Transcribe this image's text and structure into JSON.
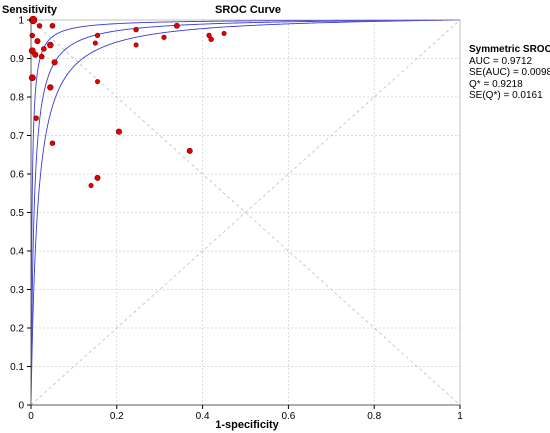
{
  "chart_data": {
    "type": "scatter",
    "title": "SROC Curve",
    "xlabel": "1-specificity",
    "ylabel": "Sensitivity",
    "xlim": [
      0,
      1
    ],
    "ylim": [
      0,
      1
    ],
    "xticks": [
      "0",
      "0.2",
      "0.4",
      "0.6",
      "0.8",
      "1"
    ],
    "yticks": [
      "0",
      "0.1",
      "0.2",
      "0.3",
      "0.4",
      "0.5",
      "0.6",
      "0.7",
      "0.8",
      "0.9",
      "1"
    ],
    "grid": true,
    "reference_lines": [
      "diagonal",
      "anti-diagonal"
    ],
    "colors": {
      "points": "#e00000",
      "points_outline": "#7a0000",
      "curves": "#3a3ad8",
      "grid": "#cfcfcf",
      "diagonal": "#bdbdbd"
    },
    "legend": {
      "placement": "right",
      "title": "Symmetric SROC",
      "lines": [
        "AUC = 0.9712",
        "SE(AUC) = 0.0098",
        "Q* = 0.9218",
        "SE(Q*) = 0.0161"
      ]
    },
    "sroc_curves": [
      {
        "label": "central",
        "q_star": 0.9218
      },
      {
        "label": "lower",
        "q_star": 0.8902
      },
      {
        "label": "upper",
        "q_star": 0.9534
      }
    ],
    "points": [
      {
        "x": 0.005,
        "y": 1.0,
        "weight": 3.0
      },
      {
        "x": 0.02,
        "y": 0.985,
        "weight": 1.2
      },
      {
        "x": 0.05,
        "y": 0.985,
        "weight": 1.3
      },
      {
        "x": 0.003,
        "y": 0.96,
        "weight": 1.2
      },
      {
        "x": 0.015,
        "y": 0.945,
        "weight": 1.5
      },
      {
        "x": 0.03,
        "y": 0.925,
        "weight": 1.3
      },
      {
        "x": 0.045,
        "y": 0.935,
        "weight": 1.8
      },
      {
        "x": 0.003,
        "y": 0.92,
        "weight": 2.0
      },
      {
        "x": 0.01,
        "y": 0.91,
        "weight": 1.6
      },
      {
        "x": 0.025,
        "y": 0.905,
        "weight": 1.3
      },
      {
        "x": 0.055,
        "y": 0.89,
        "weight": 1.6
      },
      {
        "x": 0.003,
        "y": 0.85,
        "weight": 2.0
      },
      {
        "x": 0.045,
        "y": 0.825,
        "weight": 1.7
      },
      {
        "x": 0.012,
        "y": 0.745,
        "weight": 1.2
      },
      {
        "x": 0.05,
        "y": 0.68,
        "weight": 1.2
      },
      {
        "x": 0.155,
        "y": 0.96,
        "weight": 1.1
      },
      {
        "x": 0.15,
        "y": 0.94,
        "weight": 1.0
      },
      {
        "x": 0.245,
        "y": 0.975,
        "weight": 1.2
      },
      {
        "x": 0.245,
        "y": 0.935,
        "weight": 1.0
      },
      {
        "x": 0.34,
        "y": 0.985,
        "weight": 1.4
      },
      {
        "x": 0.31,
        "y": 0.955,
        "weight": 1.1
      },
      {
        "x": 0.415,
        "y": 0.96,
        "weight": 1.1
      },
      {
        "x": 0.42,
        "y": 0.95,
        "weight": 1.2
      },
      {
        "x": 0.45,
        "y": 0.965,
        "weight": 1.0
      },
      {
        "x": 0.155,
        "y": 0.84,
        "weight": 1.0
      },
      {
        "x": 0.205,
        "y": 0.71,
        "weight": 1.6
      },
      {
        "x": 0.37,
        "y": 0.66,
        "weight": 1.5
      },
      {
        "x": 0.155,
        "y": 0.59,
        "weight": 1.5
      },
      {
        "x": 0.14,
        "y": 0.57,
        "weight": 1.0
      }
    ]
  }
}
